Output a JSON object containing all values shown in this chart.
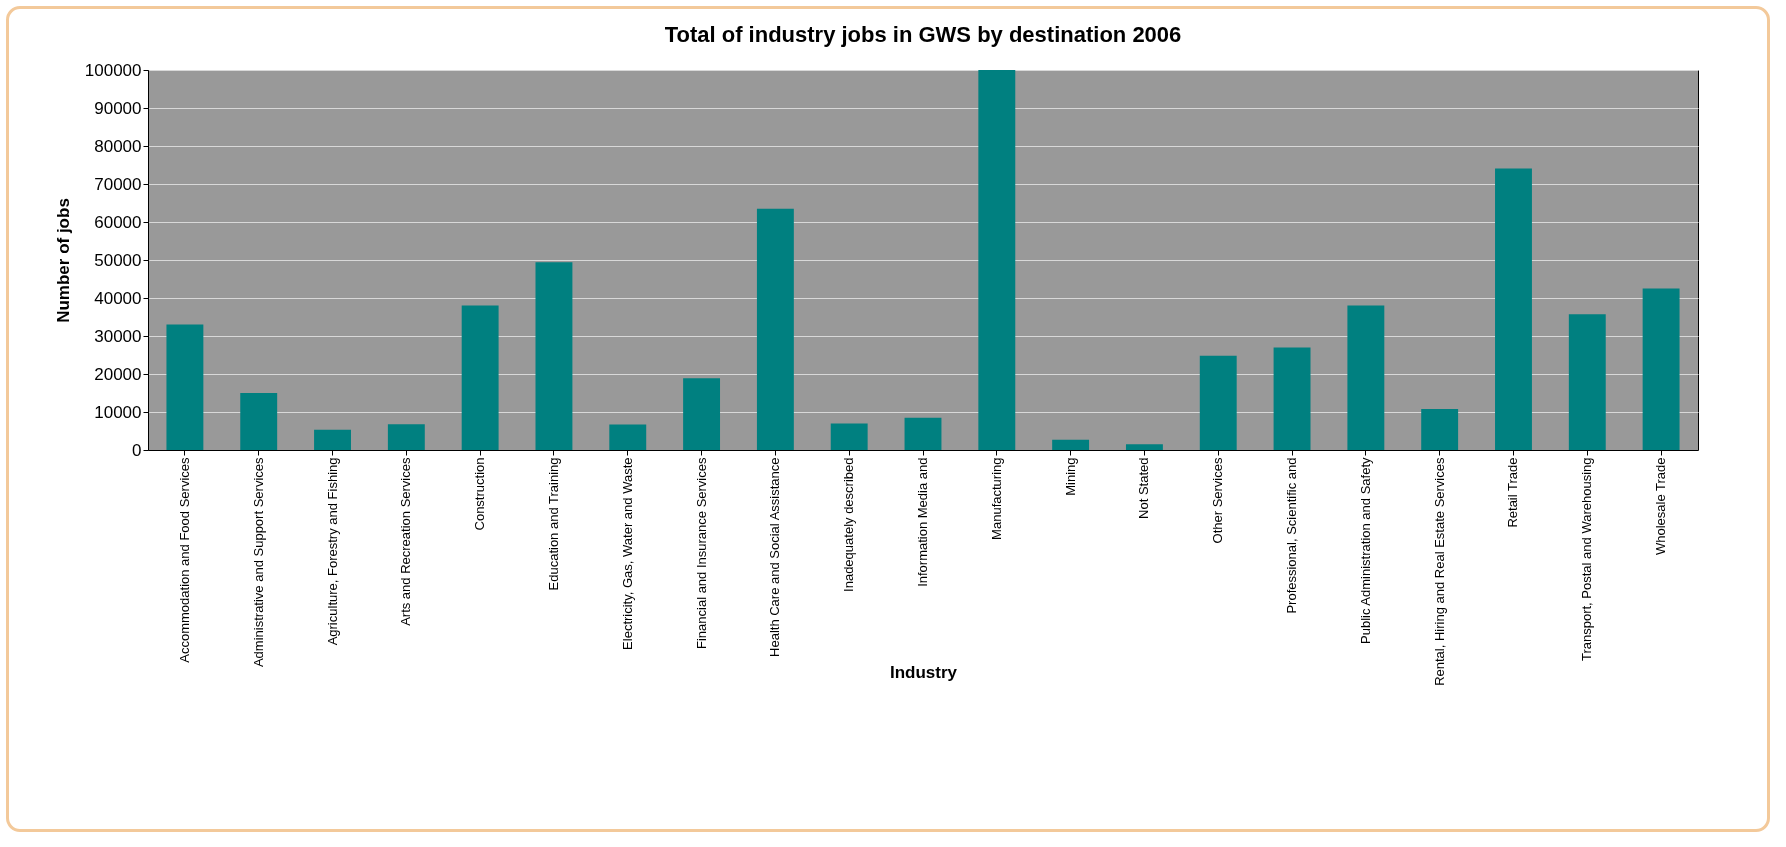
{
  "chart_data": {
    "type": "bar",
    "title": "Total of industry jobs in GWS by destination 2006",
    "xlabel": "Industry",
    "ylabel": "Number of jobs",
    "categories": [
      "Accommodation and Food Services",
      "Administrative and Support Services",
      "Agriculture, Forestry and Fishing",
      "Arts and Recreation Services",
      "Construction",
      "Education and Training",
      "Electricity, Gas, Water and Waste",
      "Financial and Insurance Services",
      "Health Care and Social Assistance",
      "Inadequately described",
      "Information Media and",
      "Manufacturing",
      "Mining",
      "Not Stated",
      "Other Services",
      "Professional, Scientific and",
      "Public Administration and Safety",
      "Rental, Hiring and Real Estate Services",
      "Retail Trade",
      "Transport, Postal and Warehousing",
      "Wholesale Trade"
    ],
    "values": [
      33000,
      15000,
      5300,
      6800,
      38000,
      49400,
      6700,
      18900,
      63500,
      7000,
      8500,
      100000,
      2700,
      1500,
      24800,
      27000,
      38000,
      10800,
      74100,
      35700,
      42500
    ],
    "color": "#008080",
    "ylim": [
      0,
      100000
    ],
    "yticks": [
      0,
      10000,
      20000,
      30000,
      40000,
      50000,
      60000,
      70000,
      80000,
      90000,
      100000
    ],
    "grid": "y"
  }
}
